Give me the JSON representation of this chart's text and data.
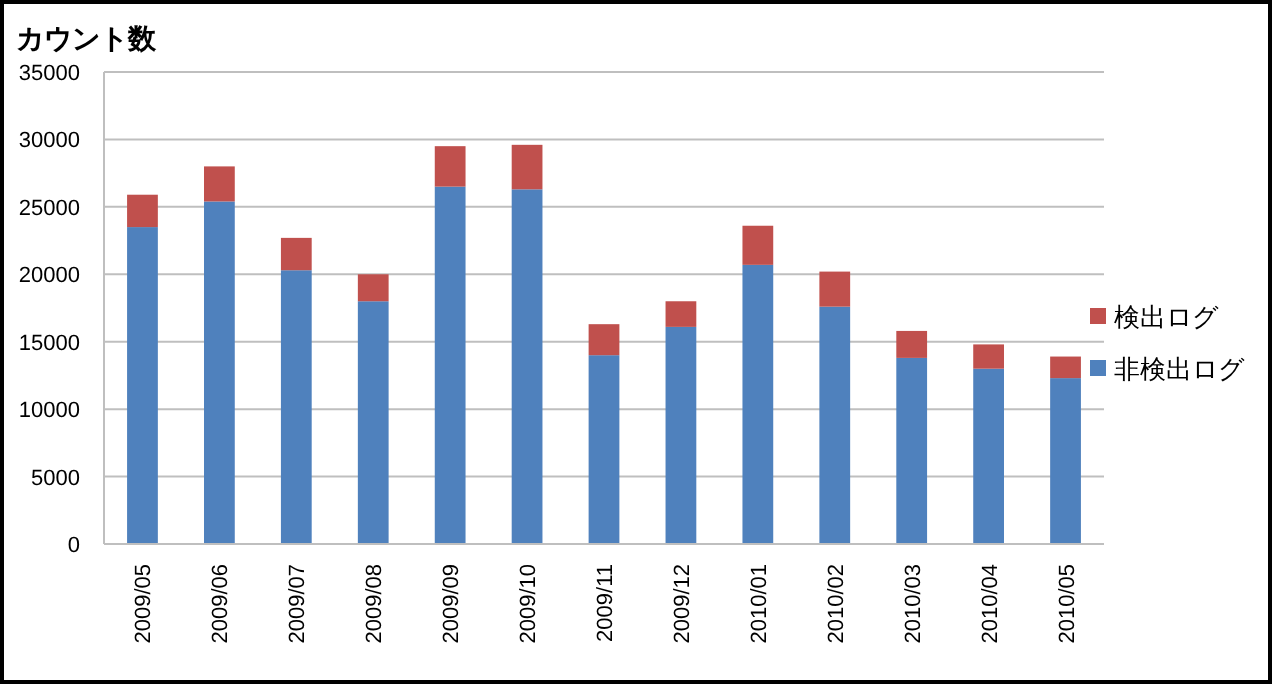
{
  "chart_data": {
    "type": "bar",
    "stacked": true,
    "title": "カウント数",
    "categories": [
      "2009/05",
      "2009/06",
      "2009/07",
      "2009/08",
      "2009/09",
      "2009/10",
      "2009/11",
      "2009/12",
      "2010/01",
      "2010/02",
      "2010/03",
      "2010/04",
      "2010/05"
    ],
    "series": [
      {
        "name": "非検出ログ",
        "color": "#4f81bd",
        "values": [
          23500,
          25400,
          20300,
          18000,
          26500,
          26300,
          14000,
          16100,
          20700,
          17600,
          13800,
          13000,
          12300
        ]
      },
      {
        "name": "検出ログ",
        "color": "#c0504d",
        "values": [
          2400,
          2600,
          2400,
          2000,
          3000,
          3300,
          2300,
          1900,
          2900,
          2600,
          2000,
          1800,
          1600
        ]
      }
    ],
    "ylim": [
      0,
      35000
    ],
    "yticks": [
      0,
      5000,
      10000,
      15000,
      20000,
      25000,
      30000,
      35000
    ],
    "grid": "y",
    "legend": "right"
  }
}
